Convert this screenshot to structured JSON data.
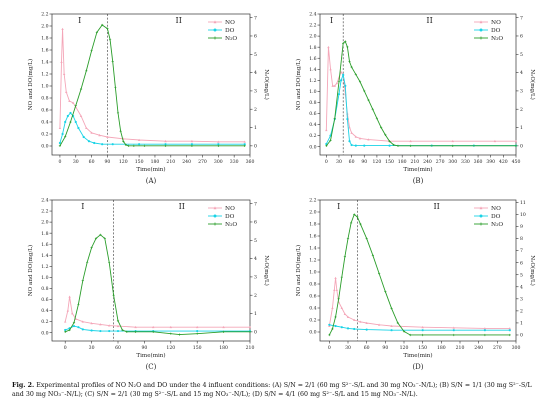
{
  "caption": {
    "label": "Fig. 2.",
    "text": "Experimental profiles of NO N₂O and DO under the 4 influent conditions: (A) S/N = 2/1 (60 mg S²⁻-S/L and 30 mg NO₃⁻-N/L); (B) S/N = 1/1 (30 mg S²⁻-S/L and 30 mg NO₃⁻-N/L); (C) S/N = 2/1 (30 mg S²⁻-S/L and 15 mg NO₃⁻-N/L); (D) S/N = 4/1 (60 mg S²⁻-S/L and 15 mg NO₃⁻-N/L)."
  },
  "colors": {
    "NO": "#f4a6b8",
    "DO": "#19d3e6",
    "N2O": "#2a9d2a",
    "divider": "#333333",
    "axis": "#333333"
  },
  "chart_data": [
    {
      "panel": "(A)",
      "type": "line",
      "xlabel": "Time(min)",
      "ylabel": "NO and DO(mg/L)",
      "y2label": "N₂O(mg/L)",
      "xlim": [
        -15,
        360
      ],
      "xticks": [
        0,
        30,
        60,
        90,
        120,
        150,
        180,
        210,
        240,
        270,
        300,
        330,
        360
      ],
      "ylim": [
        -0.15,
        2.2
      ],
      "yticks": [
        0.0,
        0.2,
        0.4,
        0.6,
        0.8,
        1.0,
        1.2,
        1.4,
        1.6,
        1.8,
        2.0,
        2.2
      ],
      "y2lim": [
        -0.5,
        7.2
      ],
      "y2ticks": [
        0,
        1,
        2,
        3,
        4,
        5,
        6,
        7
      ],
      "phase_divider_x": 90,
      "phase_labels": [
        "I",
        "II"
      ],
      "legend": [
        "NO",
        "DO",
        "N₂O"
      ],
      "legend_position": "top-right",
      "series": [
        {
          "name": "NO",
          "axis": "left",
          "x": [
            0,
            3,
            5,
            8,
            12,
            18,
            25,
            30,
            40,
            50,
            60,
            75,
            90,
            120,
            150,
            200,
            250,
            300,
            350
          ],
          "y": [
            0.3,
            1.4,
            1.95,
            1.2,
            0.9,
            0.75,
            0.72,
            0.65,
            0.5,
            0.3,
            0.22,
            0.18,
            0.15,
            0.12,
            0.1,
            0.08,
            0.08,
            0.07,
            0.07
          ]
        },
        {
          "name": "DO",
          "axis": "left",
          "x": [
            0,
            5,
            10,
            15,
            20,
            25,
            30,
            35,
            45,
            55,
            65,
            80,
            100,
            150,
            200,
            250,
            300,
            350
          ],
          "y": [
            0.05,
            0.2,
            0.4,
            0.5,
            0.55,
            0.5,
            0.4,
            0.3,
            0.15,
            0.08,
            0.05,
            0.03,
            0.03,
            0.03,
            0.03,
            0.03,
            0.03,
            0.03
          ]
        },
        {
          "name": "N₂O",
          "axis": "right",
          "x": [
            0,
            10,
            20,
            30,
            40,
            50,
            60,
            70,
            80,
            90,
            95,
            100,
            105,
            110,
            115,
            120,
            125,
            130,
            140,
            160,
            200,
            250,
            300,
            350
          ],
          "y": [
            0,
            0.5,
            1.3,
            2.2,
            3.1,
            4.1,
            5.2,
            6.2,
            6.6,
            6.4,
            5.8,
            4.6,
            3.2,
            1.8,
            0.8,
            0.25,
            0.05,
            0,
            0,
            0,
            0,
            0,
            0,
            0
          ]
        }
      ]
    },
    {
      "panel": "(B)",
      "type": "line",
      "xlabel": "Time(min)",
      "ylabel": "NO and DO(mg/L)",
      "y2label": "N₂O(mg/L)",
      "xlim": [
        -15,
        450
      ],
      "xticks": [
        0,
        30,
        60,
        90,
        120,
        150,
        180,
        210,
        240,
        270,
        300,
        330,
        360,
        390,
        420,
        450
      ],
      "ylim": [
        -0.15,
        2.4
      ],
      "yticks": [
        0.0,
        0.2,
        0.4,
        0.6,
        0.8,
        1.0,
        1.2,
        1.4,
        1.6,
        1.8,
        2.0,
        2.2,
        2.4
      ],
      "y2lim": [
        -0.5,
        7.2
      ],
      "y2ticks": [
        0,
        1,
        2,
        3,
        4,
        5,
        6,
        7
      ],
      "phase_divider_x": 40,
      "phase_labels": [
        "I",
        "II"
      ],
      "legend": [
        "NO",
        "DO",
        "N₂O"
      ],
      "legend_position": "top-right",
      "series": [
        {
          "name": "NO",
          "axis": "left",
          "x": [
            0,
            5,
            10,
            15,
            20,
            25,
            30,
            35,
            40,
            45,
            50,
            55,
            60,
            70,
            80,
            100,
            150,
            200,
            300,
            400,
            450
          ],
          "y": [
            0.3,
            1.8,
            1.4,
            1.1,
            1.1,
            1.15,
            1.25,
            1.35,
            1.3,
            0.95,
            0.6,
            0.35,
            0.25,
            0.18,
            0.15,
            0.13,
            0.1,
            0.1,
            0.1,
            0.1,
            0.1
          ]
        },
        {
          "name": "DO",
          "axis": "left",
          "x": [
            0,
            10,
            20,
            30,
            35,
            40,
            45,
            50,
            55,
            60,
            70,
            90,
            150,
            250,
            350,
            450
          ],
          "y": [
            0.05,
            0.2,
            0.5,
            0.95,
            1.2,
            1.3,
            1.1,
            0.5,
            0.1,
            0.03,
            0.02,
            0.02,
            0.02,
            0.02,
            0.02,
            0.02
          ]
        },
        {
          "name": "N₂O",
          "axis": "right",
          "x": [
            0,
            10,
            20,
            30,
            40,
            45,
            50,
            55,
            60,
            70,
            80,
            90,
            100,
            110,
            120,
            130,
            140,
            150,
            160,
            170,
            200,
            300,
            450
          ],
          "y": [
            0,
            0.3,
            1.5,
            3.5,
            5.6,
            5.7,
            5.4,
            4.6,
            4.3,
            3.9,
            3.5,
            3.0,
            2.5,
            2.0,
            1.5,
            1.0,
            0.6,
            0.25,
            0.05,
            0,
            0,
            0,
            0
          ]
        }
      ]
    },
    {
      "panel": "(C)",
      "type": "line",
      "xlabel": "Time(min)",
      "ylabel": "NO and DO(mg/L)",
      "y2label": "N₂O(mg/L)",
      "xlim": [
        -15,
        210
      ],
      "xticks": [
        0,
        30,
        60,
        90,
        120,
        150,
        180,
        210
      ],
      "ylim": [
        -0.15,
        2.4
      ],
      "yticks": [
        0.0,
        0.2,
        0.4,
        0.6,
        0.8,
        1.0,
        1.2,
        1.4,
        1.6,
        1.8,
        2.0,
        2.2,
        2.4
      ],
      "y2lim": [
        -0.5,
        7.2
      ],
      "y2ticks": [
        0,
        1,
        2,
        3,
        4,
        5,
        6,
        7
      ],
      "phase_divider_x": 55,
      "phase_labels": [
        "I",
        "II"
      ],
      "legend": [
        "NO",
        "DO",
        "N₂O"
      ],
      "legend_position": "top-right",
      "series": [
        {
          "name": "NO",
          "axis": "left",
          "x": [
            0,
            3,
            5,
            8,
            12,
            20,
            30,
            40,
            50,
            60,
            80,
            100,
            120,
            150,
            180,
            210
          ],
          "y": [
            0.2,
            0.4,
            0.65,
            0.35,
            0.25,
            0.2,
            0.17,
            0.15,
            0.13,
            0.12,
            0.1,
            0.1,
            0.1,
            0.1,
            0.1,
            0.1
          ]
        },
        {
          "name": "DO",
          "axis": "left",
          "x": [
            0,
            5,
            10,
            15,
            20,
            30,
            40,
            50,
            60,
            80,
            100,
            150,
            210
          ],
          "y": [
            0.05,
            0.08,
            0.12,
            0.1,
            0.06,
            0.04,
            0.03,
            0.03,
            0.03,
            0.03,
            0.03,
            0.03,
            0.03
          ]
        },
        {
          "name": "N₂O",
          "axis": "right",
          "x": [
            0,
            5,
            10,
            15,
            20,
            25,
            30,
            35,
            40,
            45,
            50,
            55,
            60,
            65,
            70,
            80,
            100,
            120,
            130,
            150,
            180,
            210
          ],
          "y": [
            0,
            0.1,
            0.5,
            1.5,
            2.8,
            3.8,
            4.6,
            5.1,
            5.3,
            5.1,
            3.8,
            2.0,
            0.6,
            0.1,
            0,
            0,
            0,
            -0.1,
            -0.15,
            -0.1,
            0,
            0
          ]
        }
      ]
    },
    {
      "panel": "(D)",
      "type": "line",
      "xlabel": "Time(min)",
      "ylabel": "NO and DO(mg/L)",
      "y2label": "N₂O(mg/L)",
      "xlim": [
        -15,
        300
      ],
      "xticks": [
        0,
        30,
        60,
        90,
        120,
        150,
        180,
        210,
        240,
        270,
        300
      ],
      "ylim": [
        -0.15,
        2.2
      ],
      "yticks": [
        0.0,
        0.2,
        0.4,
        0.6,
        0.8,
        1.0,
        1.2,
        1.4,
        1.6,
        1.8,
        2.0,
        2.2
      ],
      "y2lim": [
        -0.5,
        11.2
      ],
      "y2ticks": [
        0,
        1,
        2,
        3,
        4,
        5,
        6,
        7,
        8,
        9,
        10,
        11
      ],
      "phase_divider_x": 45,
      "phase_labels": [
        "I",
        "II"
      ],
      "legend": [
        "NO",
        "DO",
        "N₂O"
      ],
      "legend_position": "top-right",
      "series": [
        {
          "name": "NO",
          "axis": "left",
          "x": [
            0,
            5,
            8,
            10,
            12,
            15,
            20,
            25,
            30,
            40,
            50,
            60,
            80,
            100,
            150,
            200,
            250,
            290
          ],
          "y": [
            0.1,
            0.4,
            0.7,
            0.9,
            0.7,
            0.5,
            0.4,
            0.3,
            0.25,
            0.2,
            0.17,
            0.15,
            0.12,
            0.1,
            0.08,
            0.07,
            0.06,
            0.06
          ]
        },
        {
          "name": "DO",
          "axis": "left",
          "x": [
            0,
            10,
            20,
            30,
            40,
            60,
            100,
            150,
            200,
            250,
            290
          ],
          "y": [
            0.12,
            0.1,
            0.08,
            0.06,
            0.05,
            0.04,
            0.03,
            0.03,
            0.03,
            0.03,
            0.03
          ]
        },
        {
          "name": "N₂O",
          "axis": "right",
          "x": [
            0,
            5,
            10,
            15,
            20,
            25,
            30,
            35,
            40,
            45,
            50,
            60,
            70,
            80,
            90,
            100,
            110,
            120,
            130,
            150,
            200,
            250,
            290
          ],
          "y": [
            0,
            0.5,
            1.5,
            3,
            4.8,
            6.5,
            8,
            9.3,
            10,
            9.8,
            9.2,
            8,
            6.6,
            5.1,
            3.6,
            2.2,
            1.0,
            0.3,
            0,
            0,
            0,
            0,
            0
          ]
        }
      ]
    }
  ]
}
